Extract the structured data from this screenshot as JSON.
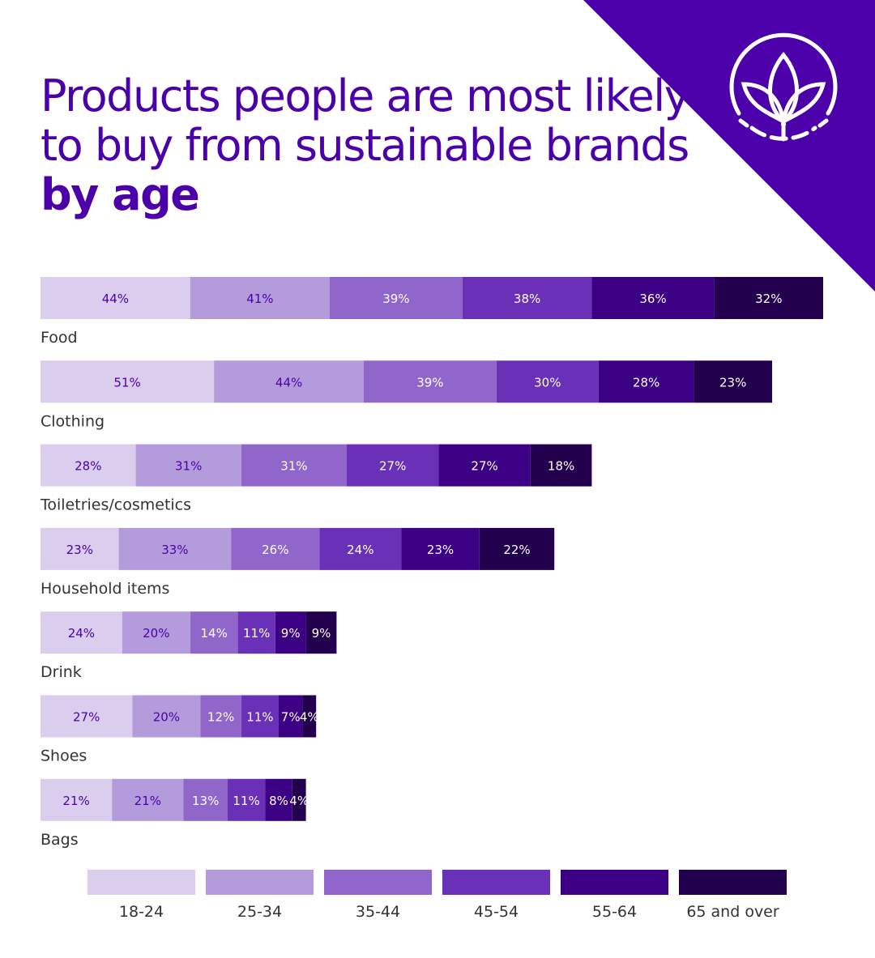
{
  "title": {
    "main": "Products people are most likely to buy from sustainable brands",
    "emphasis": "by age"
  },
  "logo_icon": "leaf-sprout-circle-icon",
  "colors": {
    "accent": "#4b00a9",
    "series": [
      "#dacdee",
      "#b39bdc",
      "#9166cb",
      "#6a31b8",
      "#3c0084",
      "#22004d"
    ],
    "label_dark_text": "#4b00a9",
    "label_light_text": "#ffffff"
  },
  "chart_data": {
    "type": "bar",
    "orientation": "horizontal",
    "stacked": true,
    "title": "Products people are most likely to buy from sustainable brands by age",
    "categories": [
      "Food",
      "Clothing",
      "Toiletries/cosmetics",
      "Household items",
      "Drink",
      "Shoes",
      "Bags"
    ],
    "series": [
      {
        "name": "18-24",
        "values": [
          44,
          51,
          28,
          23,
          24,
          27,
          21
        ]
      },
      {
        "name": "25-34",
        "values": [
          41,
          44,
          31,
          33,
          20,
          20,
          21
        ]
      },
      {
        "name": "35-44",
        "values": [
          39,
          39,
          31,
          26,
          14,
          12,
          13
        ]
      },
      {
        "name": "45-54",
        "values": [
          38,
          30,
          27,
          24,
          11,
          11,
          11
        ]
      },
      {
        "name": "55-64",
        "values": [
          36,
          28,
          27,
          23,
          9,
          7,
          8
        ]
      },
      {
        "name": "65 and over",
        "values": [
          32,
          23,
          18,
          22,
          9,
          4,
          4
        ]
      }
    ],
    "unit": "%",
    "legend_position": "bottom",
    "grid": false
  }
}
